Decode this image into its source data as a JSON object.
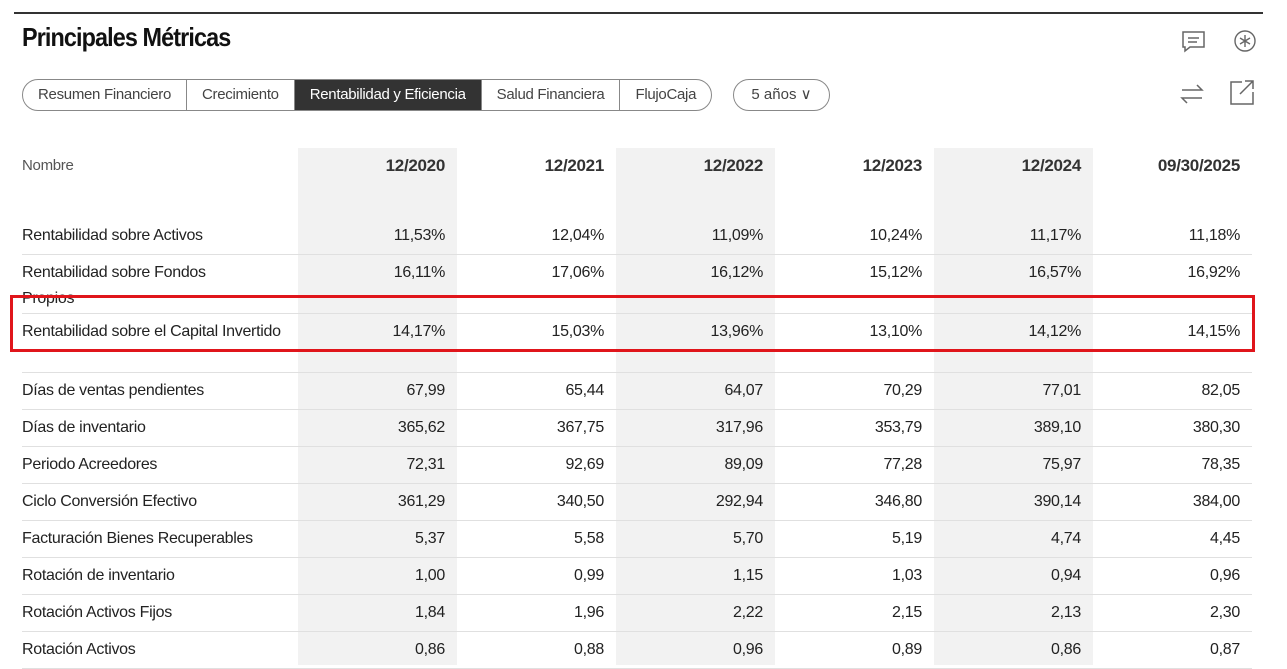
{
  "title": "Principales Métricas",
  "tabs": [
    "Resumen Financiero",
    "Crecimiento",
    "Rentabilidad y Eficiencia",
    "Salud Financiera",
    "FlujoCaja"
  ],
  "active_tab": 2,
  "period": "5 años ∨",
  "table": {
    "name_header": "Nombre",
    "columns": [
      "12/2020",
      "12/2021",
      "12/2022",
      "12/2023",
      "12/2024",
      "09/30/2025"
    ],
    "rows": [
      {
        "name": "Rentabilidad sobre Activos",
        "values": [
          "11,53%",
          "12,04%",
          "11,09%",
          "10,24%",
          "11,17%",
          "11,18%"
        ]
      },
      {
        "name": "Rentabilidad sobre Fondos Propios",
        "values": [
          "16,11%",
          "17,06%",
          "16,12%",
          "15,12%",
          "16,57%",
          "16,92%"
        ]
      },
      {
        "name": "Rentabilidad sobre el Capital Invertido",
        "values": [
          "14,17%",
          "15,03%",
          "13,96%",
          "13,10%",
          "14,12%",
          "14,15%"
        ],
        "highlighted": true
      },
      {
        "name": "Días de ventas pendientes",
        "values": [
          "67,99",
          "65,44",
          "64,07",
          "70,29",
          "77,01",
          "82,05"
        ]
      },
      {
        "name": "Días de inventario",
        "values": [
          "365,62",
          "367,75",
          "317,96",
          "353,79",
          "389,10",
          "380,30"
        ]
      },
      {
        "name": "Periodo Acreedores",
        "values": [
          "72,31",
          "92,69",
          "89,09",
          "77,28",
          "75,97",
          "78,35"
        ]
      },
      {
        "name": "Ciclo Conversión Efectivo",
        "values": [
          "361,29",
          "340,50",
          "292,94",
          "346,80",
          "390,14",
          "384,00"
        ]
      },
      {
        "name": "Facturación Bienes Recuperables",
        "values": [
          "5,37",
          "5,58",
          "5,70",
          "5,19",
          "4,74",
          "4,45"
        ]
      },
      {
        "name": "Rotación de inventario",
        "values": [
          "1,00",
          "0,99",
          "1,15",
          "1,03",
          "0,94",
          "0,96"
        ]
      },
      {
        "name": "Rotación Activos Fijos",
        "values": [
          "1,84",
          "1,96",
          "2,22",
          "2,15",
          "2,13",
          "2,30"
        ]
      },
      {
        "name": "Rotación Activos",
        "values": [
          "0,86",
          "0,88",
          "0,96",
          "0,89",
          "0,86",
          "0,87"
        ]
      }
    ]
  },
  "highlight_color": "#e0151b"
}
